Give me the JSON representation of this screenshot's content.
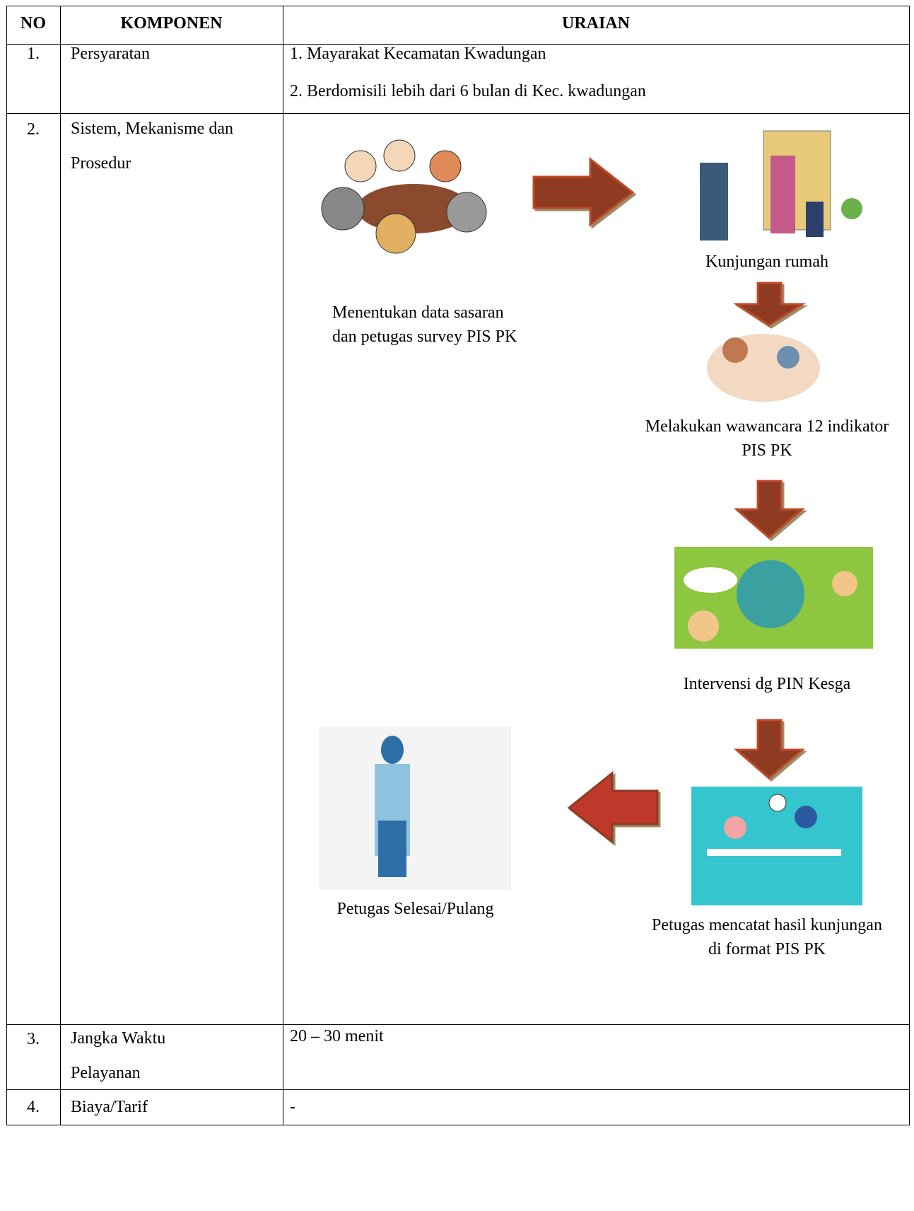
{
  "table": {
    "header": [
      "NO",
      "KOMPONEN",
      "URAIAN"
    ],
    "rows": [
      {
        "no": "1.",
        "komponen": "Persyaratan",
        "uraian": [
          "1. Mayarakat Kecamatan Kwadungan",
          "2. Berdomisili lebih dari 6 bulan di Kec. kwadungan"
        ]
      },
      {
        "no": "2.",
        "komponen": "Sistem, Mekanisme dan Prosedur",
        "flow": [
          "Menentukan data sasaran dan petugas survey PIS PK",
          "Kunjungan rumah",
          "Melakukan wawancara 12 indikator PIS PK",
          "Intervensi dg PIN Kesga",
          "Petugas mencatat hasil kunjungan di format PIS PK",
          "Petugas Selesai/Pulang"
        ]
      },
      {
        "no": "3.",
        "komponen": "Jangka Waktu Pelayanan",
        "uraian": "20 – 30 menit"
      },
      {
        "no": "4.",
        "komponen": "Biaya/Tarif",
        "uraian": "-"
      }
    ]
  }
}
